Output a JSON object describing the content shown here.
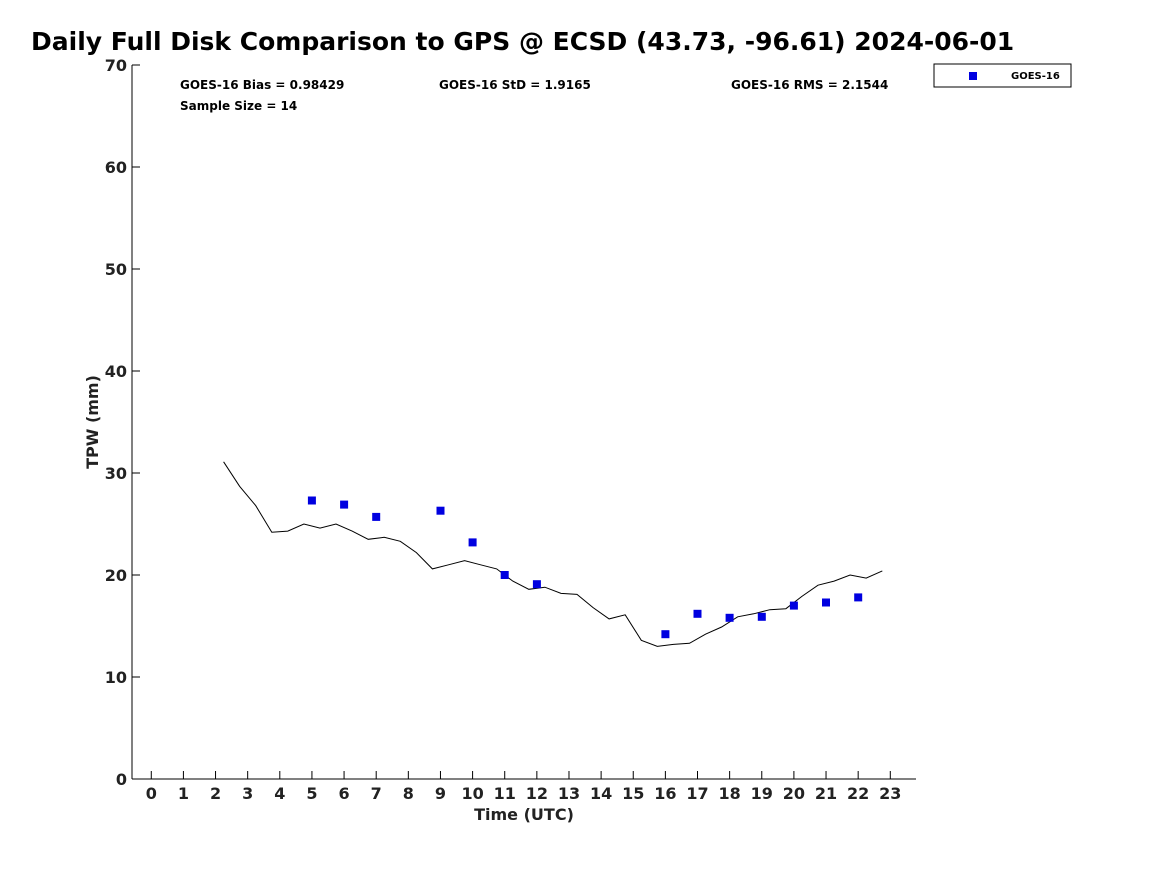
{
  "chart_data": {
    "type": "scatter",
    "title": "Daily Full Disk Comparison to GPS @ ECSD (43.73, -96.61) 2024-06-01",
    "xlabel": "Time (UTC)",
    "ylabel": "TPW (mm)",
    "xlim": [
      -0.6,
      23.8
    ],
    "ylim": [
      0,
      70
    ],
    "xticks": [
      0,
      1,
      2,
      3,
      4,
      5,
      6,
      7,
      8,
      9,
      10,
      11,
      12,
      13,
      14,
      15,
      16,
      17,
      18,
      19,
      20,
      21,
      22,
      23
    ],
    "yticks": [
      0,
      10,
      20,
      30,
      40,
      50,
      60,
      70
    ],
    "grid": false,
    "legend_position": "outside-top-right",
    "stats": {
      "bias": "GOES-16 Bias = 0.98429",
      "std": "GOES-16 StD = 1.9165",
      "rms": "GOES-16 RMS = 2.1544",
      "sample": "Sample Size = 14"
    },
    "series": [
      {
        "name": "GOES-16",
        "kind": "scatter",
        "marker": "square",
        "color": "#0000e0",
        "points": [
          [
            5,
            27.3
          ],
          [
            6,
            26.9
          ],
          [
            7,
            25.7
          ],
          [
            9,
            26.3
          ],
          [
            10,
            23.2
          ],
          [
            11,
            20.0
          ],
          [
            12,
            19.1
          ],
          [
            16,
            14.2
          ],
          [
            17,
            16.2
          ],
          [
            18,
            15.8
          ],
          [
            19,
            15.9
          ],
          [
            20,
            17.0
          ],
          [
            21,
            17.3
          ],
          [
            22,
            17.8
          ]
        ]
      },
      {
        "kind": "line",
        "color": "#000000",
        "points": [
          [
            2.25,
            31.1
          ],
          [
            2.75,
            28.7
          ],
          [
            3.25,
            26.8
          ],
          [
            3.75,
            24.2
          ],
          [
            4.25,
            24.3
          ],
          [
            4.75,
            25.0
          ],
          [
            5.25,
            24.6
          ],
          [
            5.75,
            25.0
          ],
          [
            6.25,
            24.3
          ],
          [
            6.75,
            23.5
          ],
          [
            7.25,
            23.7
          ],
          [
            7.75,
            23.3
          ],
          [
            8.25,
            22.2
          ],
          [
            8.75,
            20.6
          ],
          [
            9.25,
            21.0
          ],
          [
            9.75,
            21.4
          ],
          [
            10.25,
            21.0
          ],
          [
            10.75,
            20.6
          ],
          [
            11.25,
            19.4
          ],
          [
            11.75,
            18.6
          ],
          [
            12.25,
            18.8
          ],
          [
            12.75,
            18.2
          ],
          [
            13.25,
            18.1
          ],
          [
            13.75,
            16.8
          ],
          [
            14.25,
            15.7
          ],
          [
            14.75,
            16.1
          ],
          [
            15.25,
            13.6
          ],
          [
            15.75,
            13.0
          ],
          [
            16.25,
            13.2
          ],
          [
            16.75,
            13.3
          ],
          [
            17.25,
            14.2
          ],
          [
            17.75,
            14.9
          ],
          [
            18.25,
            15.9
          ],
          [
            18.75,
            16.2
          ],
          [
            19.25,
            16.6
          ],
          [
            19.75,
            16.7
          ],
          [
            20.25,
            17.9
          ],
          [
            20.75,
            19.0
          ],
          [
            21.25,
            19.4
          ],
          [
            21.75,
            20.0
          ],
          [
            22.25,
            19.7
          ],
          [
            22.75,
            20.4
          ]
        ]
      }
    ]
  }
}
